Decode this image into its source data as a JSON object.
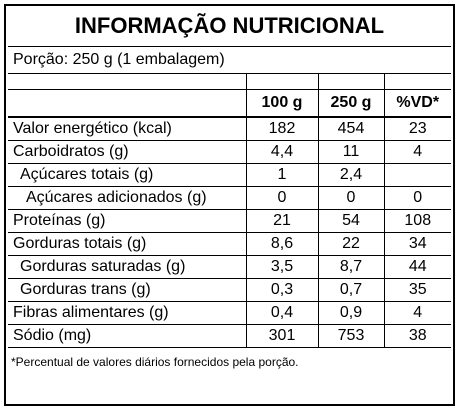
{
  "title": "INFORMAÇÃO NUTRICIONAL",
  "portion": "Porção: 250 g (1 embalagem)",
  "table": {
    "header": [
      "100 g",
      "250 g",
      "%VD*"
    ],
    "rows": [
      [
        "Valor energético (kcal)",
        "182",
        "454",
        "23"
      ],
      [
        "Carboidratos (g)",
        "4,4",
        "11",
        "4"
      ],
      [
        "Açúcares totais (g)",
        "1",
        "2,4"
      ],
      [
        "Açúcares adicionados (g)",
        "0",
        "0",
        "0"
      ],
      [
        "Proteínas (g)",
        "21",
        "54",
        "108"
      ],
      [
        "Gorduras totais (g)",
        "8,6",
        "22",
        "34"
      ],
      [
        "Gorduras saturadas (g)",
        "3,5",
        "8,7",
        "44"
      ],
      [
        "Gorduras trans (g)",
        "0,3",
        "0,7",
        "35"
      ],
      [
        "Fibras alimentares (g)",
        "0,4",
        "0,9",
        "4"
      ],
      [
        "Sódio (mg)",
        "301",
        "753",
        "38"
      ]
    ]
  },
  "footnote": "*Percentual de valores diários fornecidos pela porção."
}
